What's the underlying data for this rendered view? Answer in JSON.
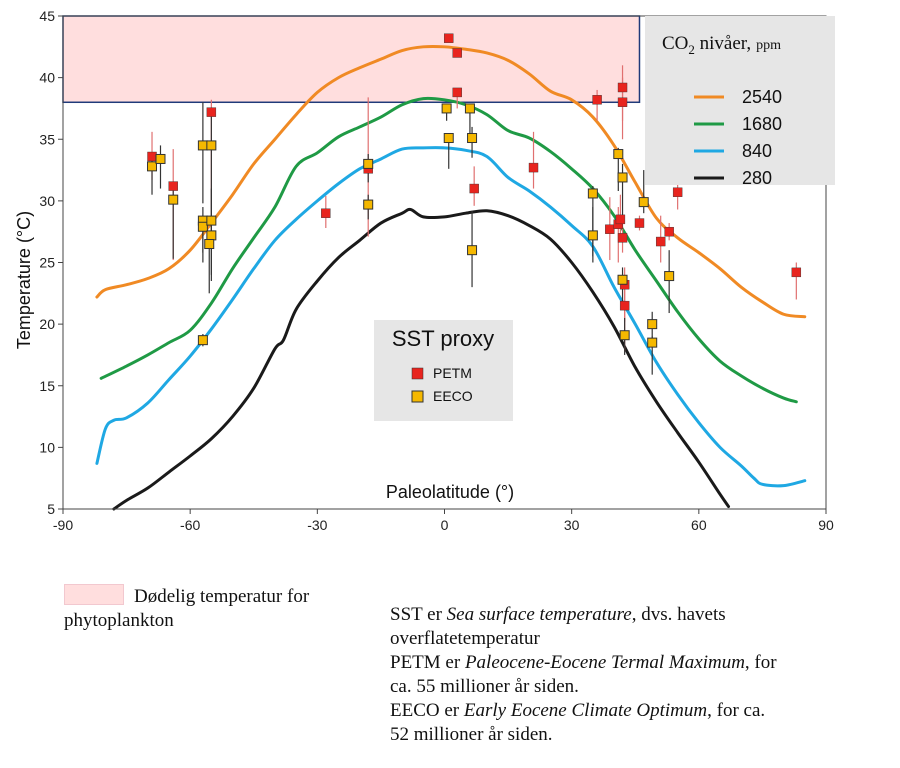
{
  "chart_data": {
    "type": "line",
    "xlabel": "Paleolatitude (°)",
    "ylabel": "Temperature (°C)",
    "xlim": [
      -90,
      90
    ],
    "ylim": [
      5,
      45
    ],
    "xticks": [
      -90,
      -60,
      -30,
      0,
      30,
      60,
      90
    ],
    "yticks": [
      5,
      10,
      15,
      20,
      25,
      30,
      35,
      40,
      45
    ],
    "xtick_labels": [
      "-90",
      "-60",
      "-30",
      "0",
      "30",
      "60",
      "90"
    ],
    "ytick_labels": [
      "5",
      "10",
      "15",
      "20",
      "25",
      "30",
      "35",
      "40",
      "45"
    ],
    "lethal_band": {
      "x": [
        -90,
        46
      ],
      "y": [
        38,
        45
      ],
      "color": "#ffdede"
    },
    "legend": {
      "title_main": "CO",
      "title_sub": "2",
      "title_rest": " nivåer,",
      "title_unit": "ppm"
    },
    "series": [
      {
        "name": "2540",
        "color": "#f08a24",
        "x": [
          -82,
          -80,
          -75,
          -70,
          -65,
          -60,
          -55,
          -50,
          -45,
          -40,
          -35,
          -30,
          -25,
          -20,
          -15,
          -10,
          -5,
          0,
          5,
          10,
          15,
          20,
          25,
          30,
          35,
          40,
          45,
          50,
          55,
          60,
          65,
          70,
          75,
          80,
          85
        ],
        "y": [
          22.2,
          22.8,
          23.2,
          23.7,
          24.5,
          26.0,
          28.2,
          30.5,
          33.0,
          35.0,
          37.0,
          38.8,
          40.0,
          40.8,
          41.5,
          42.2,
          42.5,
          42.5,
          42.3,
          42.0,
          41.4,
          40.3,
          38.9,
          38.2,
          36.8,
          34.5,
          31.5,
          28.6,
          27.0,
          25.8,
          24.5,
          23.0,
          21.8,
          20.8,
          20.6
        ]
      },
      {
        "name": "1680",
        "color": "#1f9a45",
        "x": [
          -81,
          -75,
          -70,
          -65,
          -60,
          -55,
          -50,
          -45,
          -40,
          -35,
          -30,
          -25,
          -20,
          -15,
          -10,
          -5,
          0,
          5,
          10,
          15,
          20,
          25,
          30,
          35,
          40,
          45,
          50,
          55,
          60,
          65,
          70,
          75,
          80,
          83
        ],
        "y": [
          15.6,
          16.6,
          17.5,
          18.5,
          19.5,
          21.7,
          24.5,
          27.0,
          29.5,
          32.8,
          33.9,
          35.2,
          36.0,
          36.8,
          37.8,
          38.3,
          38.2,
          37.8,
          37.0,
          35.7,
          35.1,
          34.0,
          32.6,
          31.0,
          28.8,
          26.0,
          23.5,
          21.0,
          18.8,
          17.0,
          15.8,
          14.8,
          14.0,
          13.7
        ]
      },
      {
        "name": "840",
        "color": "#1fa8e3",
        "x": [
          -82,
          -80,
          -78,
          -75,
          -70,
          -65,
          -60,
          -55,
          -50,
          -45,
          -40,
          -35,
          -30,
          -25,
          -20,
          -15,
          -10,
          -5,
          0,
          5,
          10,
          15,
          20,
          25,
          30,
          35,
          40,
          45,
          50,
          55,
          60,
          65,
          70,
          73,
          75,
          80,
          85
        ],
        "y": [
          8.7,
          11.5,
          12.2,
          12.4,
          13.6,
          15.5,
          17.4,
          19.6,
          22.0,
          24.5,
          26.8,
          28.5,
          30.0,
          31.4,
          32.6,
          33.4,
          34.2,
          34.3,
          34.3,
          34.1,
          33.6,
          31.9,
          30.8,
          29.5,
          28.0,
          26.3,
          23.0,
          20.0,
          16.9,
          14.3,
          12.0,
          10.0,
          8.5,
          7.5,
          7.0,
          6.9,
          7.3
        ]
      },
      {
        "name": "280",
        "color": "#1a1a1a",
        "x": [
          -78,
          -75,
          -70,
          -65,
          -60,
          -55,
          -50,
          -45,
          -40,
          -38,
          -35,
          -30,
          -25,
          -20,
          -15,
          -10,
          -8,
          -5,
          0,
          5,
          10,
          15,
          20,
          25,
          30,
          35,
          40,
          45,
          50,
          55,
          60,
          65,
          67
        ],
        "y": [
          5.0,
          5.7,
          6.7,
          8.0,
          9.3,
          10.7,
          12.5,
          14.8,
          18.0,
          18.7,
          21.2,
          23.5,
          25.4,
          26.8,
          28.2,
          29.0,
          29.3,
          28.7,
          28.7,
          29.0,
          29.2,
          28.8,
          28.0,
          26.9,
          25.0,
          22.6,
          19.8,
          16.5,
          13.7,
          11.2,
          8.8,
          6.2,
          5.2
        ]
      }
    ],
    "proxy_legend": {
      "title": "SST proxy",
      "items": [
        {
          "label": "PETM",
          "color": "#e8241e"
        },
        {
          "label": "EECO",
          "color": "#f5b800"
        }
      ]
    },
    "petm_color": "#e8241e",
    "petm_err_color": "#e07070",
    "eeco_color": "#f5b800",
    "eeco_err_color": "#333333",
    "petm_points": [
      {
        "x": -69,
        "y": 33.6,
        "lo": 31.7,
        "hi": 35.6
      },
      {
        "x": -64,
        "y": 31.2,
        "lo": 25.2,
        "hi": 34.2
      },
      {
        "x": -55,
        "y": 37.2,
        "lo": 26.1,
        "hi": 38.2
      },
      {
        "x": -28,
        "y": 29.0,
        "lo": 27.8,
        "hi": 30.4
      },
      {
        "x": -18,
        "y": 32.6,
        "lo": 27.1,
        "hi": 38.4
      },
      {
        "x": 1,
        "y": 43.2,
        "lo": 43.2,
        "hi": 43.2
      },
      {
        "x": 3,
        "y": 42.0,
        "lo": 42.0,
        "hi": 42.0
      },
      {
        "x": 3,
        "y": 38.8,
        "lo": 37.5,
        "hi": 38.8
      },
      {
        "x": 7,
        "y": 31.0,
        "lo": 29.6,
        "hi": 32.8
      },
      {
        "x": 21,
        "y": 32.7,
        "lo": 31.0,
        "hi": 35.6
      },
      {
        "x": 36,
        "y": 38.2,
        "lo": 36.5,
        "hi": 39.0
      },
      {
        "x": 39,
        "y": 27.7,
        "lo": 25.2,
        "hi": 30.3
      },
      {
        "x": 41,
        "y": 28.1,
        "lo": 25.0,
        "hi": 29.5
      },
      {
        "x": 41.5,
        "y": 28.5,
        "lo": 26.7,
        "hi": 30.5
      },
      {
        "x": 42,
        "y": 38.0,
        "lo": 35.0,
        "hi": 40.0
      },
      {
        "x": 42,
        "y": 39.2,
        "lo": 36.5,
        "hi": 41.0
      },
      {
        "x": 42,
        "y": 27.0,
        "lo": 25.8,
        "hi": 28.4
      },
      {
        "x": 42.5,
        "y": 23.2,
        "lo": 17.8,
        "hi": 24.6
      },
      {
        "x": 42.5,
        "y": 21.5,
        "lo": 20.2,
        "hi": 22.8
      },
      {
        "x": 46,
        "y": 28.2,
        "lo": 27.6,
        "hi": 28.8
      },
      {
        "x": 51,
        "y": 26.7,
        "lo": 25.0,
        "hi": 28.8
      },
      {
        "x": 53,
        "y": 27.5,
        "lo": 26.8,
        "hi": 28.2
      },
      {
        "x": 55,
        "y": 30.7,
        "lo": 29.3,
        "hi": 33.1
      },
      {
        "x": 83,
        "y": 24.2,
        "lo": 22.0,
        "hi": 25.0
      }
    ],
    "eeco_points": [
      {
        "x": -69,
        "y": 32.8,
        "lo": 30.5,
        "hi": 33.5
      },
      {
        "x": -67,
        "y": 33.4,
        "lo": 31.0,
        "hi": 34.5
      },
      {
        "x": -64,
        "y": 30.1,
        "lo": 25.3,
        "hi": 31.2
      },
      {
        "x": -57,
        "y": 34.5,
        "lo": 29.8,
        "hi": 38.0
      },
      {
        "x": -57,
        "y": 28.4,
        "lo": 25.8,
        "hi": 29.5
      },
      {
        "x": -57,
        "y": 27.9,
        "lo": 25.0,
        "hi": 28.8
      },
      {
        "x": -57,
        "y": 18.7,
        "lo": 18.2,
        "hi": 19.2
      },
      {
        "x": -55,
        "y": 34.5,
        "lo": 28.0,
        "hi": 37.0
      },
      {
        "x": -55,
        "y": 28.4,
        "lo": 24.0,
        "hi": 31.0
      },
      {
        "x": -55,
        "y": 27.2,
        "lo": 23.5,
        "hi": 28.0
      },
      {
        "x": -55.5,
        "y": 26.5,
        "lo": 22.5,
        "hi": 27.5
      },
      {
        "x": -18,
        "y": 33.0,
        "lo": 31.5,
        "hi": 33.8
      },
      {
        "x": -18,
        "y": 29.7,
        "lo": 28.5,
        "hi": 30.5
      },
      {
        "x": 0.5,
        "y": 37.5,
        "lo": 36.5,
        "hi": 37.5
      },
      {
        "x": 1,
        "y": 35.1,
        "lo": 32.6,
        "hi": 35.1
      },
      {
        "x": 6,
        "y": 37.5,
        "lo": 35.0,
        "hi": 37.5
      },
      {
        "x": 6.5,
        "y": 35.1,
        "lo": 33.5,
        "hi": 36.0
      },
      {
        "x": 6.5,
        "y": 26.0,
        "lo": 23.0,
        "hi": 29.2
      },
      {
        "x": 35,
        "y": 30.6,
        "lo": 25.5,
        "hi": 31.2
      },
      {
        "x": 35,
        "y": 27.2,
        "lo": 25.0,
        "hi": 29.5
      },
      {
        "x": 41,
        "y": 33.8,
        "lo": 30.8,
        "hi": 34.3
      },
      {
        "x": 42,
        "y": 31.9,
        "lo": 28.5,
        "hi": 33.0
      },
      {
        "x": 42,
        "y": 23.6,
        "lo": 21.8,
        "hi": 24.6
      },
      {
        "x": 42.5,
        "y": 19.1,
        "lo": 17.5,
        "hi": 20.5
      },
      {
        "x": 47,
        "y": 29.9,
        "lo": 29.0,
        "hi": 32.5
      },
      {
        "x": 49,
        "y": 20.0,
        "lo": 18.9,
        "hi": 21.0
      },
      {
        "x": 49,
        "y": 18.5,
        "lo": 15.9,
        "hi": 19.0
      },
      {
        "x": 53,
        "y": 23.9,
        "lo": 20.9,
        "hi": 26.0
      }
    ]
  },
  "notes": {
    "swatch_label_line1": "Dødelig temperatur for",
    "swatch_label_line2": "phytoplankton",
    "line1_pre": "SST er ",
    "line1_em": "Sea surface temperature",
    "line1_post": ", dvs. havets",
    "line2": "overflatetemperatur",
    "line3_pre": "PETM er ",
    "line3_em": "Paleocene-Eocene Termal Maximum",
    "line3_post": ", for",
    "line4": "ca. 55 millioner år siden.",
    "line5_pre": "EECO er ",
    "line5_em": "Early Eocene Climate Optimum",
    "line5_post": ", for ca.",
    "line6": "52 millioner år siden."
  }
}
